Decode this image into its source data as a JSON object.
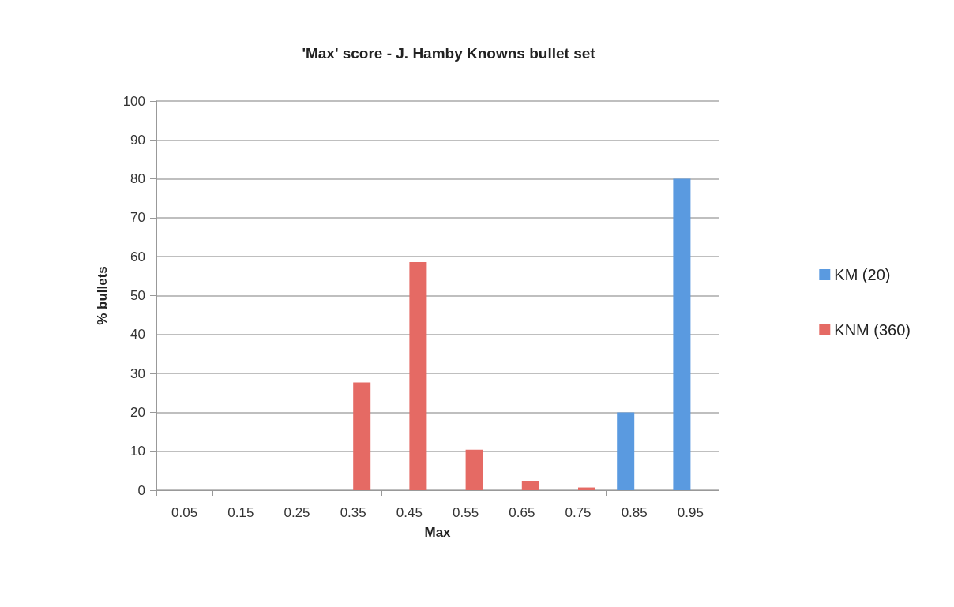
{
  "chart_data": {
    "type": "bar",
    "title": "'Max' score - J. Hamby Knowns bullet set",
    "xlabel": "Max",
    "ylabel": "% bullets",
    "categories": [
      "0.05",
      "0.15",
      "0.25",
      "0.35",
      "0.45",
      "0.55",
      "0.65",
      "0.75",
      "0.85",
      "0.95"
    ],
    "series": [
      {
        "name": "KM (20)",
        "color": "#5a9ae0",
        "values": [
          0,
          0,
          0,
          0,
          0,
          0,
          0,
          0,
          20,
          80
        ]
      },
      {
        "name": "KNM (360)",
        "color": "#e56a64",
        "values": [
          0,
          0,
          0,
          27.7,
          58.6,
          10.4,
          2.3,
          0.7,
          0,
          0
        ]
      }
    ],
    "ylim": [
      0,
      100
    ],
    "yticks": [
      0,
      10,
      20,
      30,
      40,
      50,
      60,
      70,
      80,
      90,
      100
    ],
    "grid": "y",
    "legend": "right"
  }
}
